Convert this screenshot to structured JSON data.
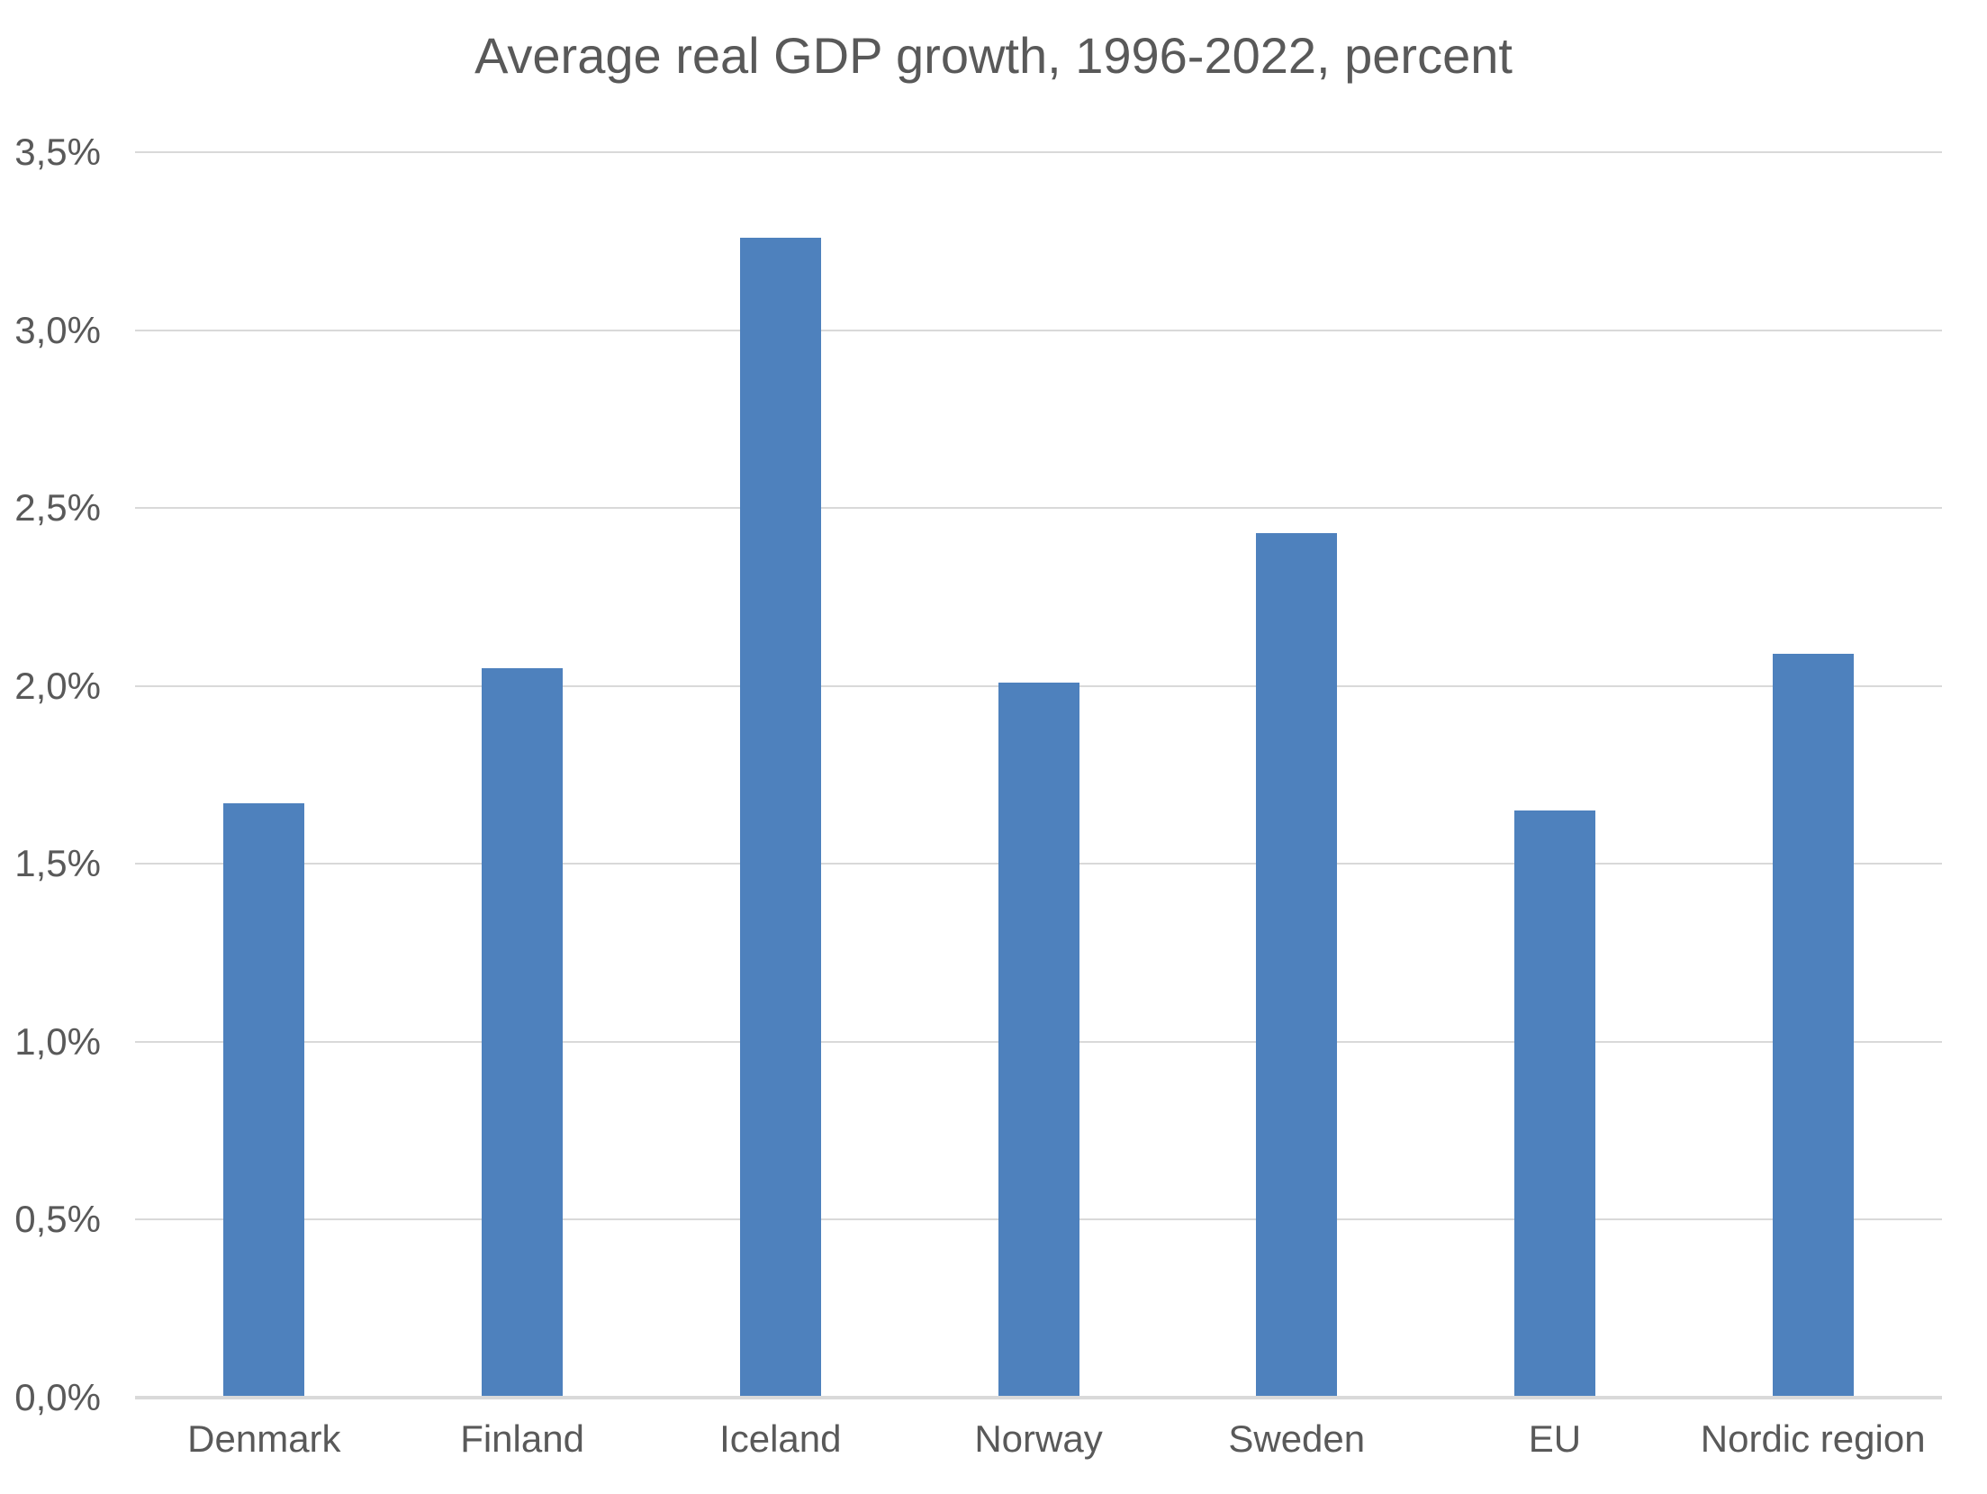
{
  "chart_data": {
    "type": "bar",
    "title": "Average real GDP growth, 1996-2022, percent",
    "categories": [
      "Denmark",
      "Finland",
      "Iceland",
      "Norway",
      "Sweden",
      "EU",
      "Nordic region"
    ],
    "values": [
      1.67,
      2.05,
      3.26,
      2.01,
      2.43,
      1.65,
      2.09
    ],
    "xlabel": "",
    "ylabel": "",
    "ylim": [
      0,
      3.5
    ],
    "y_ticks": {
      "values": [
        0,
        0.5,
        1.0,
        1.5,
        2.0,
        2.5,
        3.0,
        3.5
      ],
      "labels": [
        "0,0%",
        "0,5%",
        "1,0%",
        "1,5%",
        "2,0%",
        "2,5%",
        "3,0%",
        "3,5%"
      ]
    },
    "grid": true,
    "legend": "none",
    "colors": {
      "bar": "#4E81BD",
      "gridline": "#D9D9D9",
      "axis_line": "#D9D9D9",
      "text": "#595959",
      "background": "#FFFFFF"
    }
  }
}
